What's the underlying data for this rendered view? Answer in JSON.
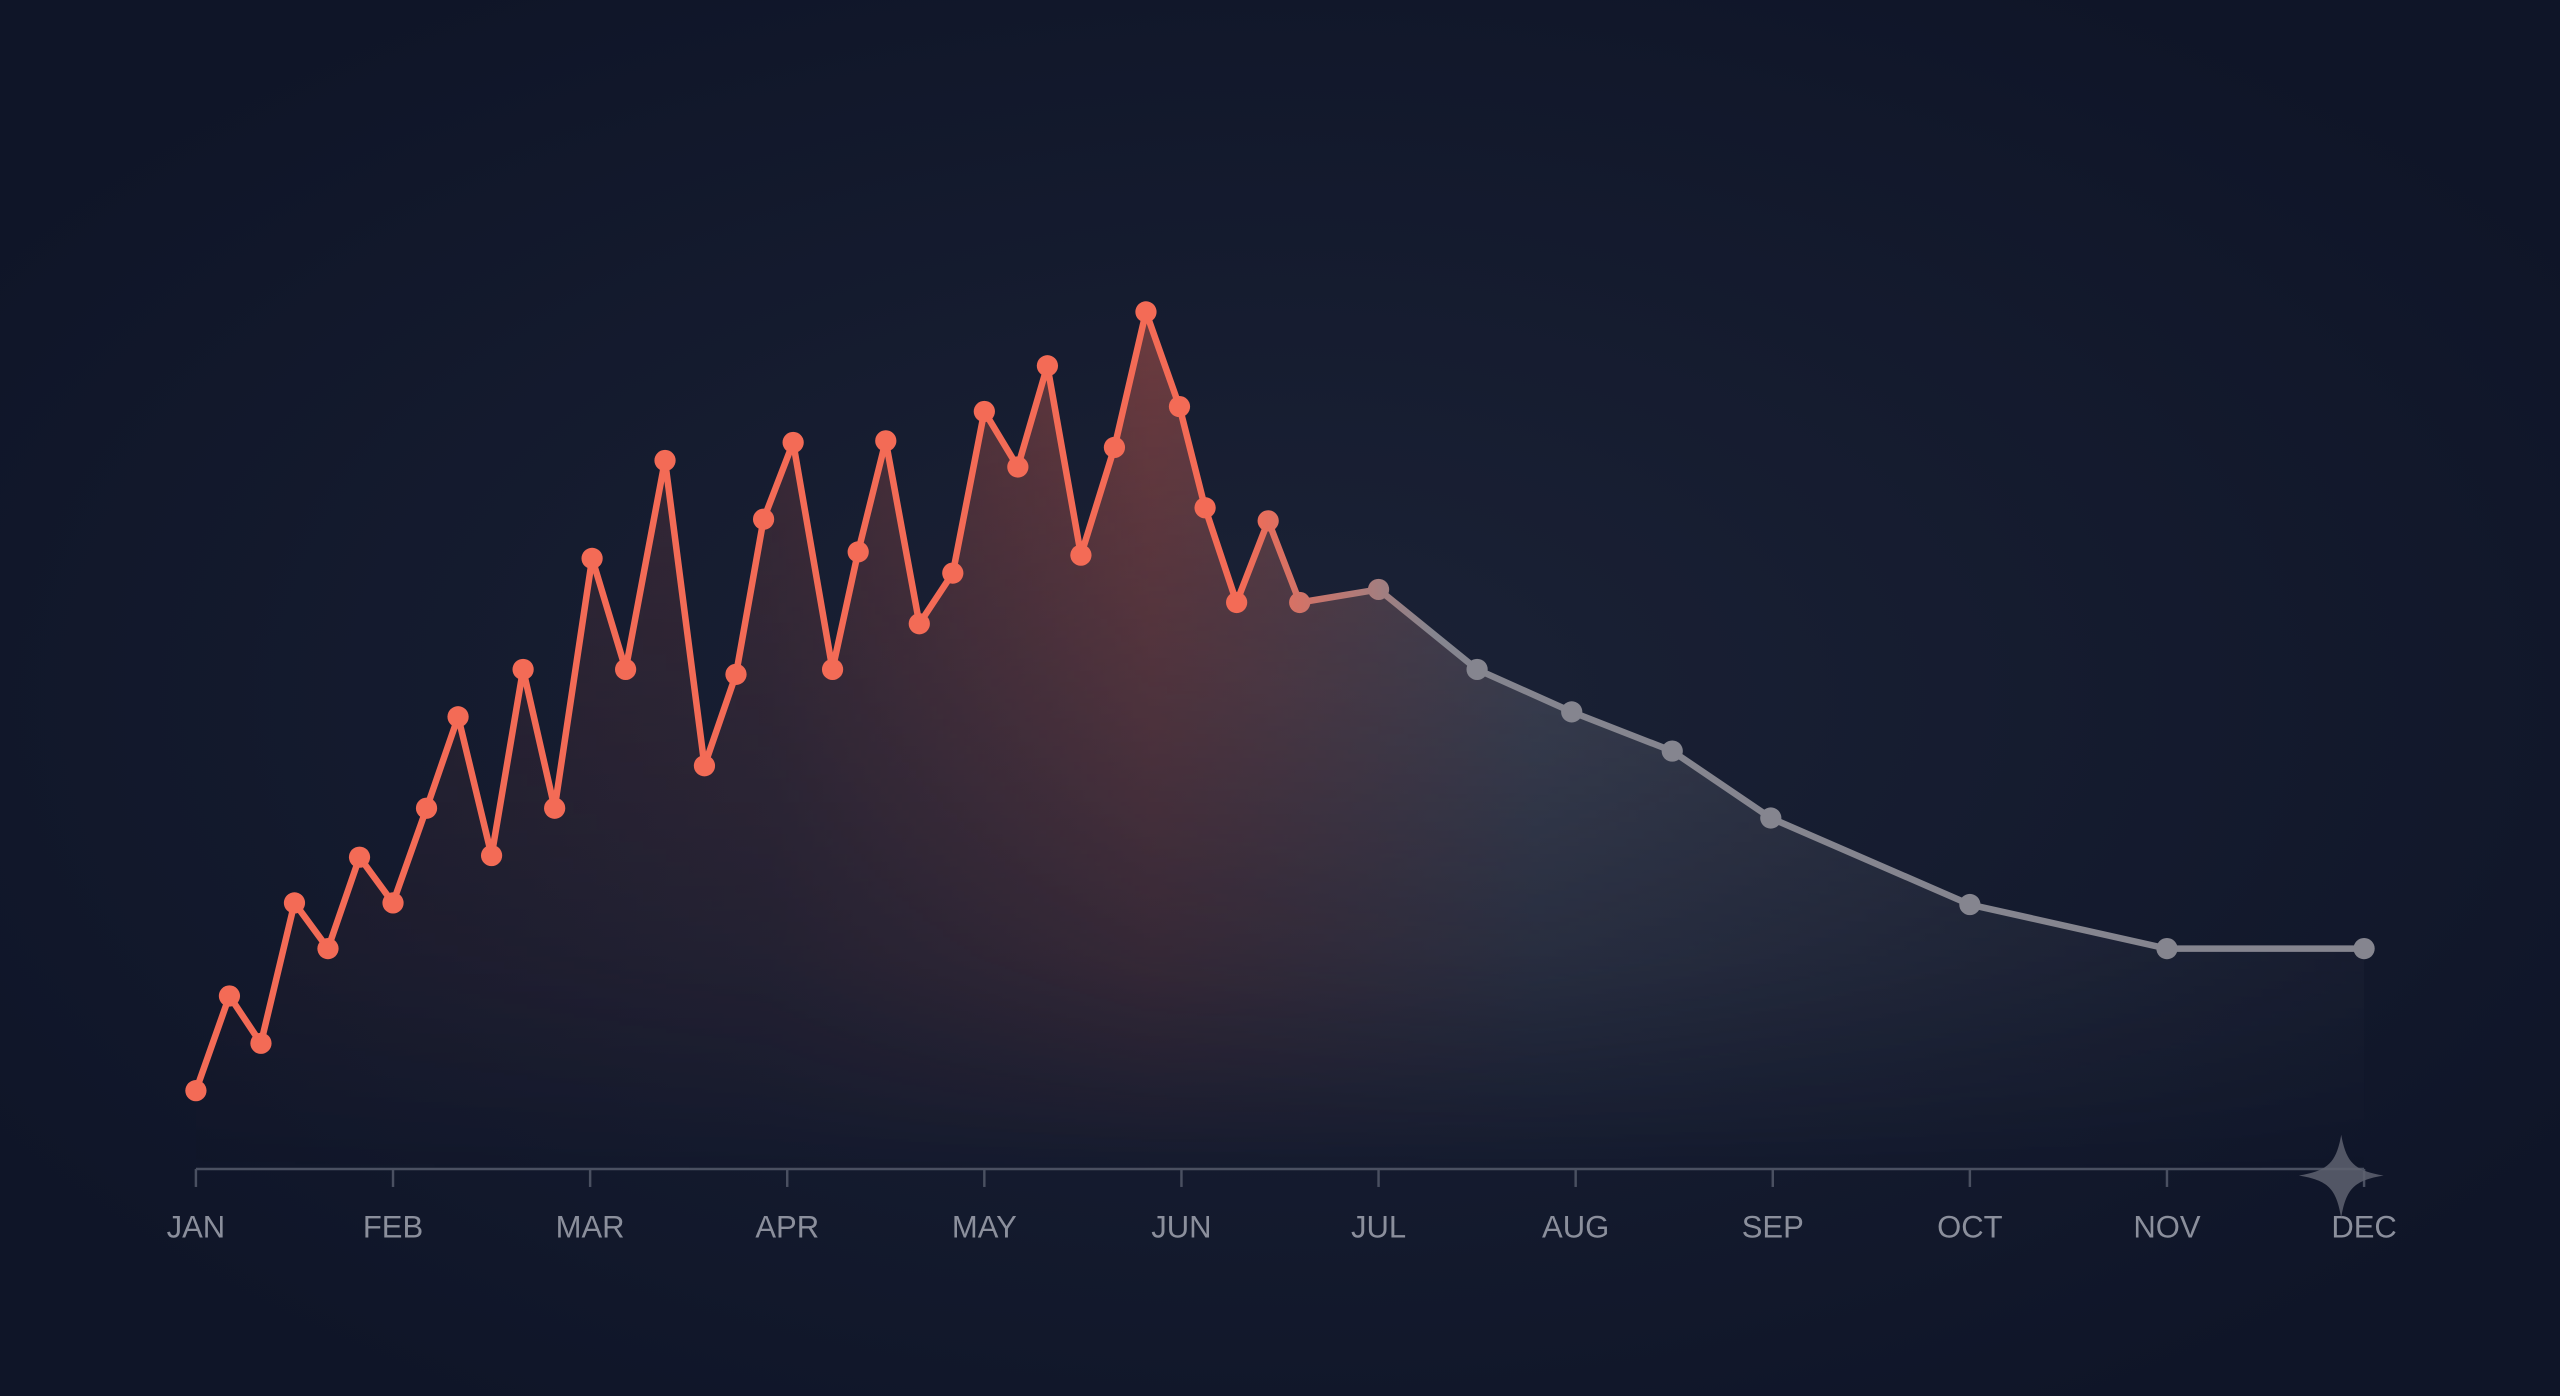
{
  "chart_data": {
    "type": "line",
    "xlim": [
      0,
      11
    ],
    "xticks": [
      {
        "value": 0,
        "label": "JAN"
      },
      {
        "value": 1,
        "label": "FEB"
      },
      {
        "value": 2,
        "label": "MAR"
      },
      {
        "value": 3,
        "label": "APR"
      },
      {
        "value": 4,
        "label": "MAY"
      },
      {
        "value": 5,
        "label": "JUN"
      },
      {
        "value": 6,
        "label": "JUL"
      },
      {
        "value": 7,
        "label": "AUG"
      },
      {
        "value": 8,
        "label": "SEP"
      },
      {
        "value": 9,
        "label": "OCT"
      },
      {
        "value": 10,
        "label": "NOV"
      },
      {
        "value": 11,
        "label": "DEC"
      }
    ],
    "ylim": [
      0,
      110
    ],
    "series": [
      {
        "color": "#f36b56",
        "fade_color": "#85858f",
        "x": [
          0,
          0.17,
          0.33,
          0.5,
          0.67,
          0.83,
          1.0,
          1.17,
          1.33,
          1.5,
          1.66,
          1.82,
          2.01,
          2.18,
          2.38,
          2.58,
          2.74,
          2.88,
          3.03,
          3.23,
          3.36,
          3.5,
          3.67,
          3.84,
          4.0,
          4.17,
          4.32,
          4.49,
          4.66,
          4.82,
          4.99,
          5.12,
          5.28,
          5.44,
          5.6,
          6.0,
          6.5,
          6.98,
          7.49,
          7.99,
          9.0,
          10.0,
          11.0
        ],
        "values": [
          9.6,
          21.2,
          15.4,
          32.6,
          27,
          38.2,
          32.6,
          44.2,
          55.4,
          38.4,
          61.2,
          44.2,
          74.8,
          61.2,
          86.8,
          49.4,
          60.6,
          79.6,
          89,
          61.2,
          75.6,
          89.2,
          66.8,
          73,
          92.8,
          86,
          98.4,
          75.2,
          88.4,
          105,
          93.4,
          81,
          69.4,
          79.4,
          69.4,
          71,
          61.2,
          56,
          51.2,
          43,
          32.4,
          27,
          27
        ]
      }
    ]
  }
}
